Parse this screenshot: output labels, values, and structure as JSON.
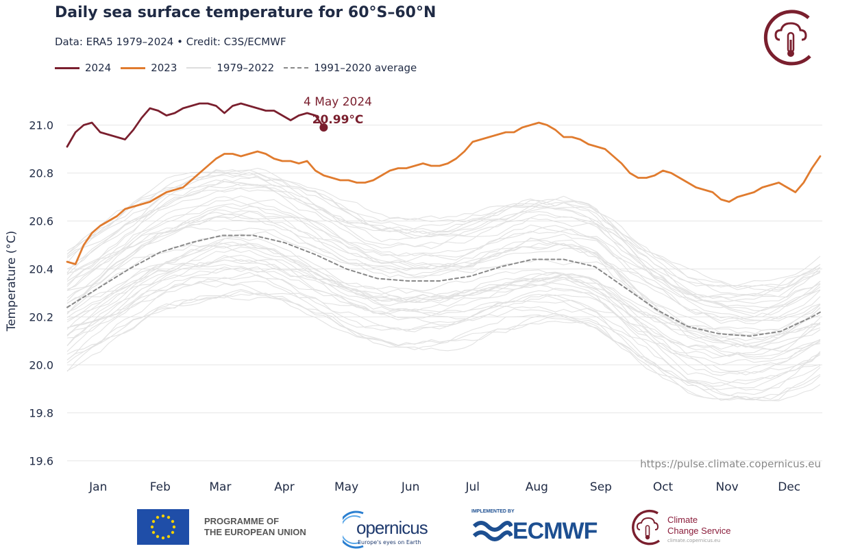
{
  "header": {
    "title": "Daily sea surface temperature for 60°S–60°N",
    "subtitle": "Data: ERA5 1979–2024  •  Credit: C3S/ECMWF"
  },
  "legend": [
    {
      "label": "2024",
      "color": "#7a1f2e",
      "style": "solid-thick"
    },
    {
      "label": "2023",
      "color": "#e07b2e",
      "style": "solid-thick"
    },
    {
      "label": "1979–2022",
      "color": "#dddddd",
      "style": "solid-thin"
    },
    {
      "label": "1991–2020 average",
      "color": "#888888",
      "style": "dashed"
    }
  ],
  "annotation": {
    "date": "4 May 2024",
    "value": "20.99°C"
  },
  "source_url": "https://pulse.climate.copernicus.eu",
  "footer": {
    "eu_program": [
      "PROGRAMME OF",
      "THE EUROPEAN UNION"
    ],
    "copernicus": "opernicus",
    "copernicus_tagline": "Europe's eyes on Earth",
    "ecmwf_top": "IMPLEMENTED BY",
    "ecmwf": "ECMWF",
    "c3s": [
      "Climate",
      "Change Service"
    ],
    "c3s_url": "climate.copernicus.eu"
  },
  "chart_data": {
    "type": "line",
    "title": "Daily sea surface temperature for 60°S–60°N",
    "xlabel": "",
    "ylabel": "Temperature (°C)",
    "ylim": [
      19.55,
      21.15
    ],
    "yticks": [
      19.6,
      19.8,
      20.0,
      20.2,
      20.4,
      20.6,
      20.8,
      21.0
    ],
    "ytick_labels": [
      "19.6",
      "19.8",
      "20.0",
      "20.2",
      "20.4",
      "20.6",
      "20.8",
      "21.0"
    ],
    "xlim": [
      1,
      366
    ],
    "month_labels": [
      "Jan",
      "Feb",
      "Mar",
      "Apr",
      "May",
      "Jun",
      "Jul",
      "Aug",
      "Sep",
      "Oct",
      "Nov",
      "Dec"
    ],
    "month_centers_doy": [
      16,
      46,
      75,
      106,
      136,
      167,
      197,
      228,
      259,
      289,
      320,
      350
    ],
    "grid": true,
    "series": [
      {
        "name": "2024",
        "color": "#7a1f2e",
        "x": [
          1,
          5,
          9,
          13,
          17,
          21,
          25,
          29,
          33,
          37,
          41,
          45,
          49,
          53,
          57,
          61,
          65,
          69,
          73,
          77,
          81,
          85,
          89,
          93,
          97,
          101,
          105,
          109,
          113,
          117,
          121,
          125
        ],
        "y": [
          20.91,
          20.97,
          21.0,
          21.01,
          20.97,
          20.96,
          20.95,
          20.94,
          20.98,
          21.03,
          21.07,
          21.06,
          21.04,
          21.05,
          21.07,
          21.08,
          21.09,
          21.09,
          21.08,
          21.05,
          21.08,
          21.09,
          21.08,
          21.07,
          21.06,
          21.06,
          21.04,
          21.02,
          21.04,
          21.05,
          21.04,
          20.99
        ]
      },
      {
        "name": "2023",
        "color": "#e07b2e",
        "x": [
          1,
          5,
          9,
          13,
          17,
          21,
          25,
          29,
          33,
          37,
          41,
          45,
          49,
          53,
          57,
          61,
          65,
          69,
          73,
          77,
          81,
          85,
          89,
          93,
          97,
          101,
          105,
          109,
          113,
          117,
          121,
          125,
          129,
          133,
          137,
          141,
          145,
          149,
          153,
          157,
          161,
          165,
          169,
          173,
          177,
          181,
          185,
          189,
          193,
          197,
          201,
          205,
          209,
          213,
          217,
          221,
          225,
          229,
          233,
          237,
          241,
          245,
          249,
          253,
          257,
          261,
          265,
          269,
          273,
          277,
          281,
          285,
          289,
          293,
          297,
          301,
          305,
          309,
          313,
          317,
          321,
          325,
          329,
          333,
          337,
          341,
          345,
          349,
          353,
          357,
          361,
          365
        ],
        "y": [
          20.43,
          20.42,
          20.5,
          20.55,
          20.58,
          20.6,
          20.62,
          20.65,
          20.66,
          20.67,
          20.68,
          20.7,
          20.72,
          20.73,
          20.74,
          20.77,
          20.8,
          20.83,
          20.86,
          20.88,
          20.88,
          20.87,
          20.88,
          20.89,
          20.88,
          20.86,
          20.85,
          20.85,
          20.84,
          20.85,
          20.81,
          20.79,
          20.78,
          20.77,
          20.77,
          20.76,
          20.76,
          20.77,
          20.79,
          20.81,
          20.82,
          20.82,
          20.83,
          20.84,
          20.83,
          20.83,
          20.84,
          20.86,
          20.89,
          20.93,
          20.94,
          20.95,
          20.96,
          20.97,
          20.97,
          20.99,
          21.0,
          21.01,
          21.0,
          20.98,
          20.95,
          20.95,
          20.94,
          20.92,
          20.91,
          20.9,
          20.87,
          20.84,
          20.8,
          20.78,
          20.78,
          20.79,
          20.81,
          20.8,
          20.78,
          20.76,
          20.74,
          20.73,
          20.72,
          20.69,
          20.68,
          20.7,
          20.71,
          20.72,
          20.74,
          20.75,
          20.76,
          20.74,
          20.72,
          20.76,
          20.82,
          20.87
        ]
      },
      {
        "name": "1991–2020 average",
        "color": "#888888",
        "x": [
          1,
          16,
          31,
          46,
          61,
          76,
          91,
          106,
          121,
          136,
          151,
          166,
          181,
          196,
          211,
          226,
          241,
          256,
          271,
          286,
          301,
          316,
          331,
          346,
          361,
          365
        ],
        "y": [
          20.24,
          20.32,
          20.4,
          20.47,
          20.51,
          20.54,
          20.54,
          20.51,
          20.46,
          20.4,
          20.36,
          20.35,
          20.35,
          20.37,
          20.41,
          20.44,
          20.44,
          20.41,
          20.32,
          20.23,
          20.16,
          20.13,
          20.12,
          20.14,
          20.2,
          20.22
        ]
      }
    ]
  }
}
